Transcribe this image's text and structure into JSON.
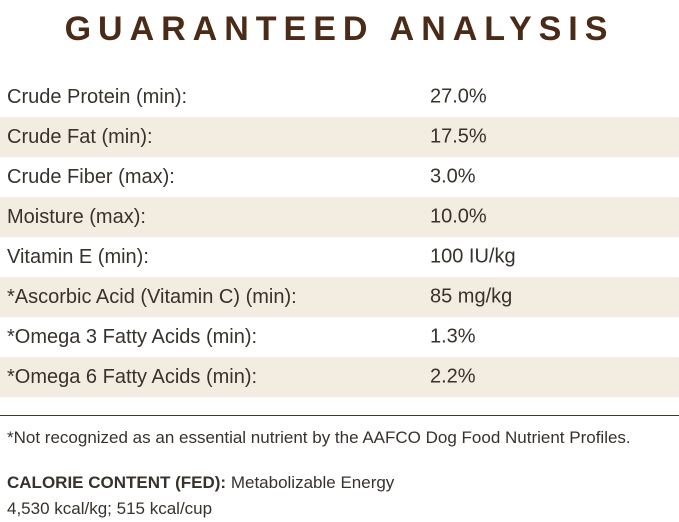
{
  "title": "GUARANTEED ANALYSIS",
  "colors": {
    "title_color": "#4a2b17",
    "row_shade": "#f2ece1",
    "text_color": "#37322c",
    "rule_color": "#453526"
  },
  "analysis_table": {
    "rows": [
      {
        "label": "Crude Protein (min):",
        "value": "27.0%"
      },
      {
        "label": "Crude Fat (min):",
        "value": "17.5%"
      },
      {
        "label": "Crude Fiber (max):",
        "value": "3.0%"
      },
      {
        "label": "Moisture (max):",
        "value": "10.0%"
      },
      {
        "label": "Vitamin E (min):",
        "value": "100 IU/kg"
      },
      {
        "label": "*Ascorbic Acid (Vitamin C) (min):",
        "value": "85 mg/kg"
      },
      {
        "label": "*Omega 3 Fatty Acids (min):",
        "value": "1.3%"
      },
      {
        "label": "*Omega 6 Fatty Acids (min):",
        "value": "2.2%"
      }
    ]
  },
  "footnote": "*Not recognized as an essential nutrient by the AAFCO Dog Food Nutrient Profiles.",
  "calorie_content": {
    "label": "CALORIE CONTENT (FED):",
    "description": "Metabolizable Energy",
    "values": "4,530 kcal/kg; 515 kcal/cup"
  }
}
